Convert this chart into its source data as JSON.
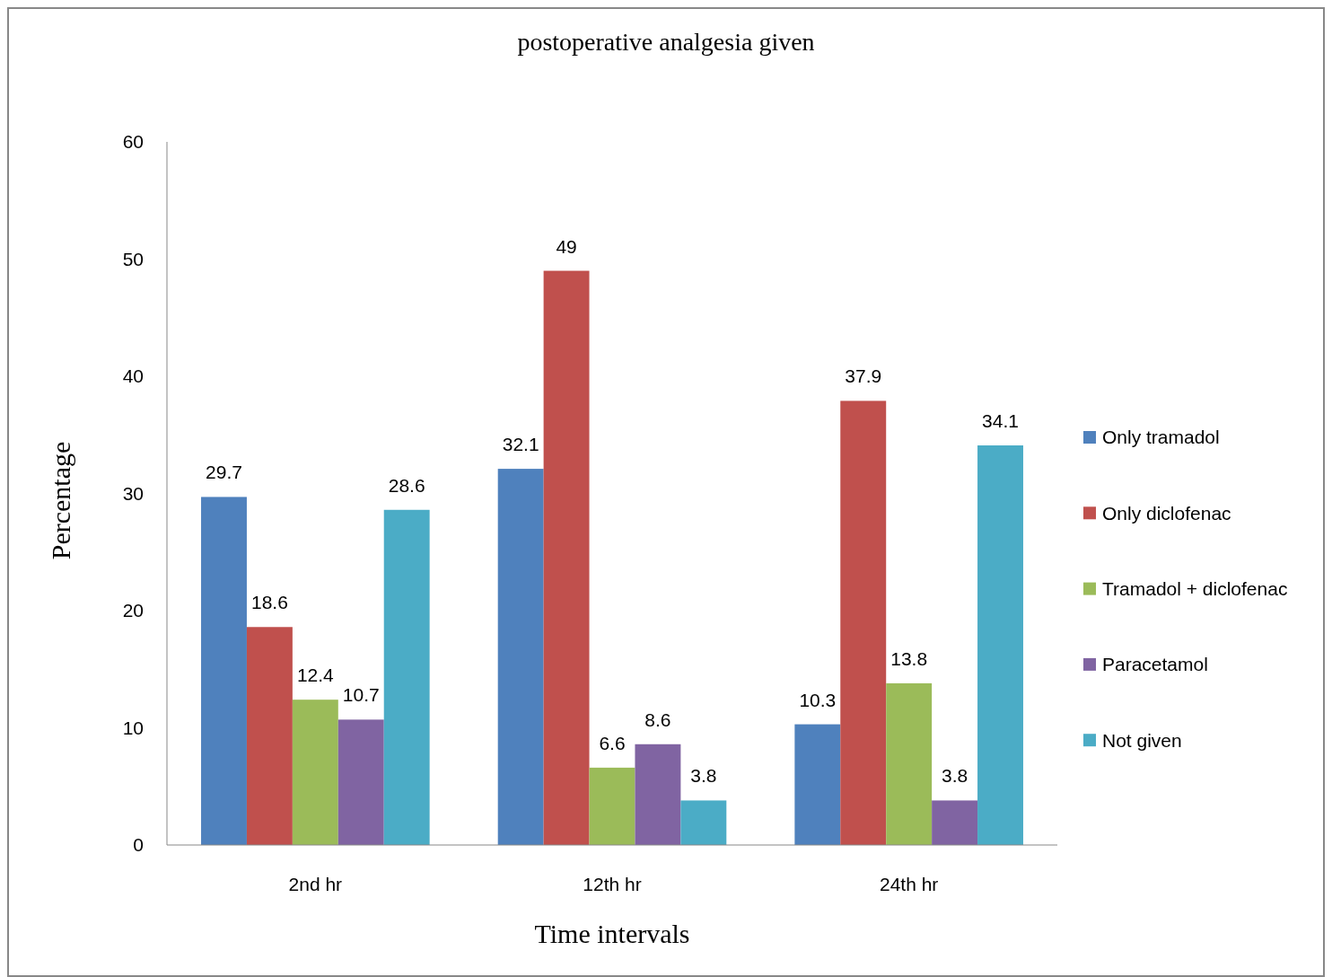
{
  "chart_data": {
    "type": "bar",
    "title": "postoperative analgesia given",
    "xlabel": "Time intervals",
    "ylabel": "Percentage",
    "categories": [
      "2nd hr",
      "12th hr",
      "24th hr"
    ],
    "series": [
      {
        "name": "Only tramadol",
        "color": "#4f81bd",
        "values": [
          29.7,
          32.1,
          10.3
        ]
      },
      {
        "name": "Only diclofenac",
        "color": "#c0504d",
        "values": [
          18.6,
          49,
          37.9
        ]
      },
      {
        "name": "Tramadol + diclofenac",
        "color": "#9bbb59",
        "values": [
          12.4,
          6.6,
          13.8
        ]
      },
      {
        "name": "Paracetamol",
        "color": "#8064a2",
        "values": [
          10.7,
          8.6,
          3.8
        ]
      },
      {
        "name": "Not given",
        "color": "#4bacc6",
        "values": [
          28.6,
          3.8,
          34.1
        ]
      }
    ],
    "ylim": [
      0,
      60
    ],
    "yticks": [
      0,
      10,
      20,
      30,
      40,
      50,
      60
    ],
    "grid": false,
    "legend": "right",
    "data_labels": true
  }
}
